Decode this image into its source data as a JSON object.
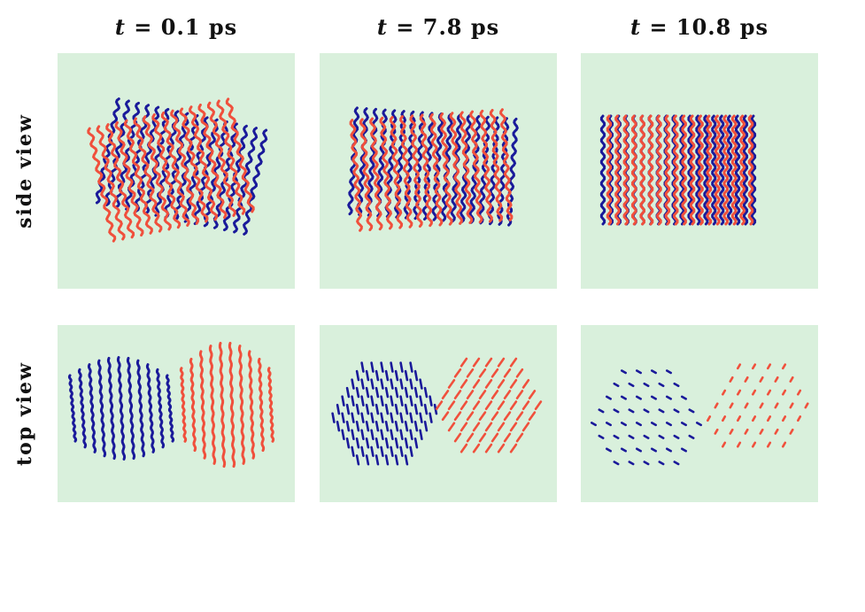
{
  "columns": [
    {
      "t_symbol": "t",
      "eq": "=",
      "value": "0.1",
      "unit": "ps"
    },
    {
      "t_symbol": "t",
      "eq": "=",
      "value": "7.8",
      "unit": "ps"
    },
    {
      "t_symbol": "t",
      "eq": "=",
      "value": "10.8",
      "unit": "ps"
    }
  ],
  "rows": [
    {
      "label": "side view"
    },
    {
      "label": "top view"
    }
  ],
  "colors": {
    "panel_background": "#d9f0dc",
    "blue_strands": "#1a1a9a",
    "red_strands": "#f0503c"
  }
}
